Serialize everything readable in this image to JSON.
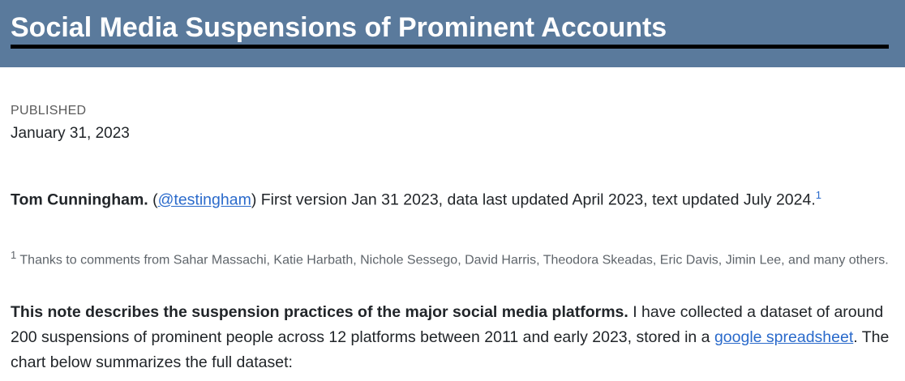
{
  "header": {
    "title": "Social Media Suspensions of Prominent Accounts"
  },
  "meta": {
    "published_label": "PUBLISHED",
    "published_date": "January 31, 2023"
  },
  "author_para": {
    "author": "Tom Cunningham.",
    "open_paren": " (",
    "handle": "@testingham",
    "rest": ") First version Jan 31 2023, data last updated April 2023, text updated July 2024.",
    "footnote_ref": "1"
  },
  "footnote": {
    "number": "1",
    "text": " Thanks to comments from Sahar Massachi, Katie Harbath, Nichole Sessego, David Harris, Theodora Skeadas, Eric Davis, Jimin Lee, and many others."
  },
  "main_para": {
    "bold": "This note describes the suspension practices of the major social media platforms.",
    "text1": " I have collected a dataset of around 200 suspensions of prominent people across 12 platforms between 2011 and early 2023, stored in a ",
    "link": "google spreadsheet",
    "text2": ". The chart below summarizes the full dataset:"
  },
  "colors": {
    "banner": "#5a7a9c",
    "link": "#2a6acb"
  }
}
